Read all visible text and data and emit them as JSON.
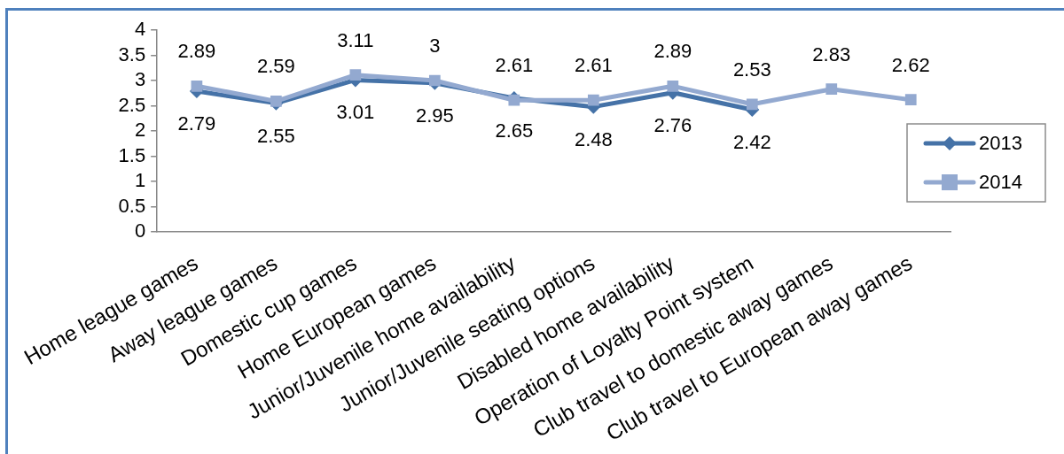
{
  "chart_data": {
    "type": "line",
    "categories": [
      "Home league games",
      "Away league games",
      "Domestic cup games",
      "Home European games",
      "Junior/Juvenile home availability",
      "Junior/Juvenile seating options",
      "Disabled home availability",
      "Operation of Loyalty Point system",
      "Club travel to domestic away games",
      "Club travel to European away games"
    ],
    "series": [
      {
        "name": "2013",
        "color": "#4572a7",
        "marker": "diamond",
        "values": [
          2.79,
          2.55,
          3.01,
          2.95,
          2.65,
          2.48,
          2.76,
          2.42,
          null,
          null
        ]
      },
      {
        "name": "2014",
        "color": "#93a9d0",
        "marker": "square",
        "values": [
          2.89,
          2.59,
          3.11,
          3,
          2.61,
          2.61,
          2.89,
          2.53,
          2.83,
          2.62
        ]
      }
    ],
    "ylim": [
      0,
      4
    ],
    "yticks": [
      0,
      0.5,
      1,
      1.5,
      2,
      2.5,
      3,
      3.5,
      4
    ],
    "data_labels": true,
    "legend": "right"
  }
}
